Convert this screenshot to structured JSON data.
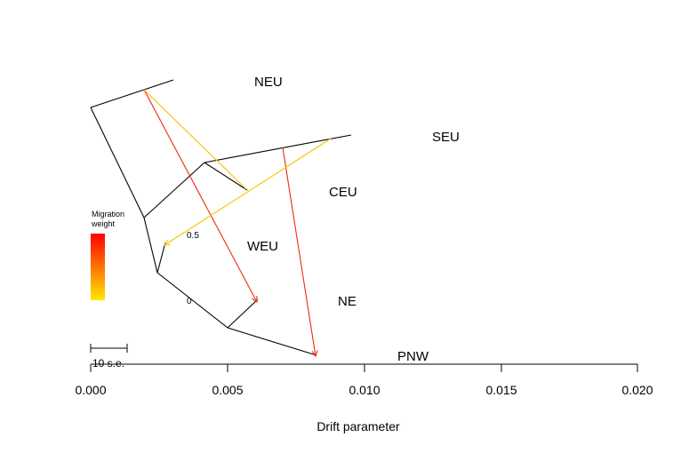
{
  "populations": {
    "neu": "NEU",
    "seu": "SEU",
    "ceu": "CEU",
    "weu": "WEU",
    "ne": "NE",
    "pnw": "PNW"
  },
  "axis": {
    "xlabel": "Drift parameter",
    "ticks": [
      "0.000",
      "0.005",
      "0.010",
      "0.015",
      "0.020"
    ]
  },
  "legend": {
    "title_line1": "Migration",
    "title_line2": "weight",
    "high_label": "0.5",
    "low_label": "0",
    "gradient_top_color": "#ff0000",
    "gradient_bottom_color": "#ffe800"
  },
  "scale_bar": {
    "label": "10 s.e."
  },
  "colors": {
    "tree": "#000000",
    "migration_strong": "#ee2a10",
    "migration_weak": "#f5c400"
  }
}
